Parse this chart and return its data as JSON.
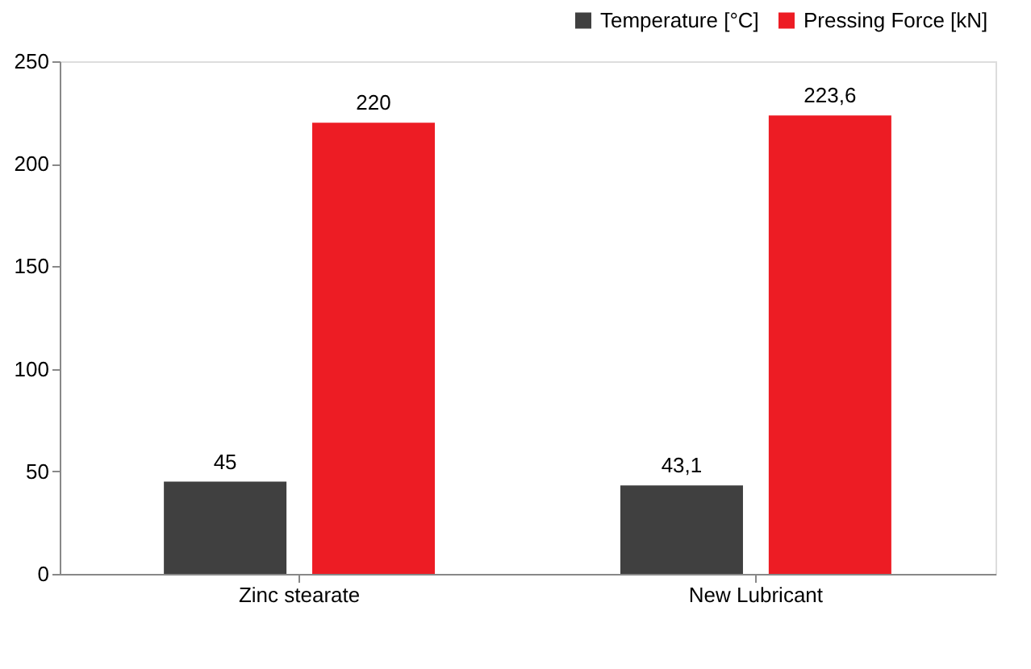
{
  "chart_data": {
    "type": "bar",
    "categories": [
      "Zinc stearate",
      "New Lubricant"
    ],
    "series": [
      {
        "name": "Temperature [°C]",
        "color": "#404040",
        "values": [
          45,
          43.1
        ],
        "value_labels": [
          "45",
          "43,1"
        ]
      },
      {
        "name": "Pressing Force [kN]",
        "color": "#ed1c24",
        "values": [
          220,
          223.6
        ],
        "value_labels": [
          "220",
          "223,6"
        ]
      }
    ],
    "ylim": [
      0,
      250
    ],
    "yticks": [
      0,
      50,
      100,
      150,
      200,
      250
    ],
    "grid": false,
    "legend": "top right"
  }
}
